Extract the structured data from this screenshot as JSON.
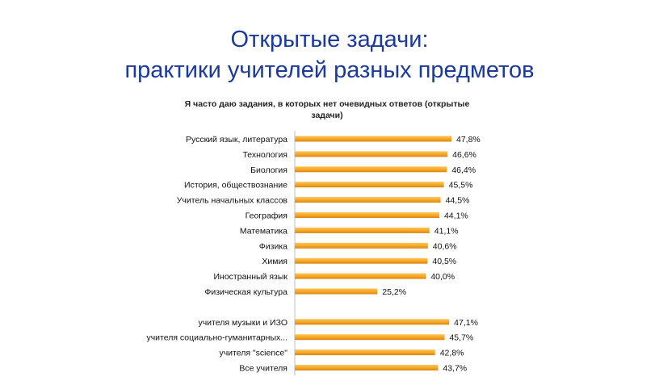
{
  "slide": {
    "title_line1": "Открытые задачи:",
    "title_line2": "практики учителей разных предметов"
  },
  "chart_data": {
    "type": "bar",
    "orientation": "horizontal",
    "title": "Я часто даю задания, в которых нет очевидных ответов (открытые задачи)",
    "categories": [
      "Русский язык, литература",
      "Технология",
      "Биология",
      "История, обществознание",
      "Учитель начальных классов",
      "География",
      "Математика",
      "Физика",
      "Химия",
      "Иностранный язык",
      "Физическая культура",
      "",
      "учителя музыки и ИЗО",
      "учителя социально-гуманитарных...",
      "учителя \"science\"",
      "Все учителя"
    ],
    "values": [
      47.8,
      46.6,
      46.4,
      45.5,
      44.5,
      44.1,
      41.1,
      40.6,
      40.5,
      40.0,
      25.2,
      null,
      47.1,
      45.7,
      42.8,
      43.7
    ],
    "value_labels": [
      "47,8%",
      "46,6%",
      "46,4%",
      "45,5%",
      "44,5%",
      "44,1%",
      "41,1%",
      "40,6%",
      "40,5%",
      "40,0%",
      "25,2%",
      "",
      "47,1%",
      "45,7%",
      "42,8%",
      "43,7%"
    ],
    "unit": "%",
    "bar_color": "#f5a623",
    "bar_color_dark": "#d9850f",
    "grid": false,
    "legend": "none"
  }
}
